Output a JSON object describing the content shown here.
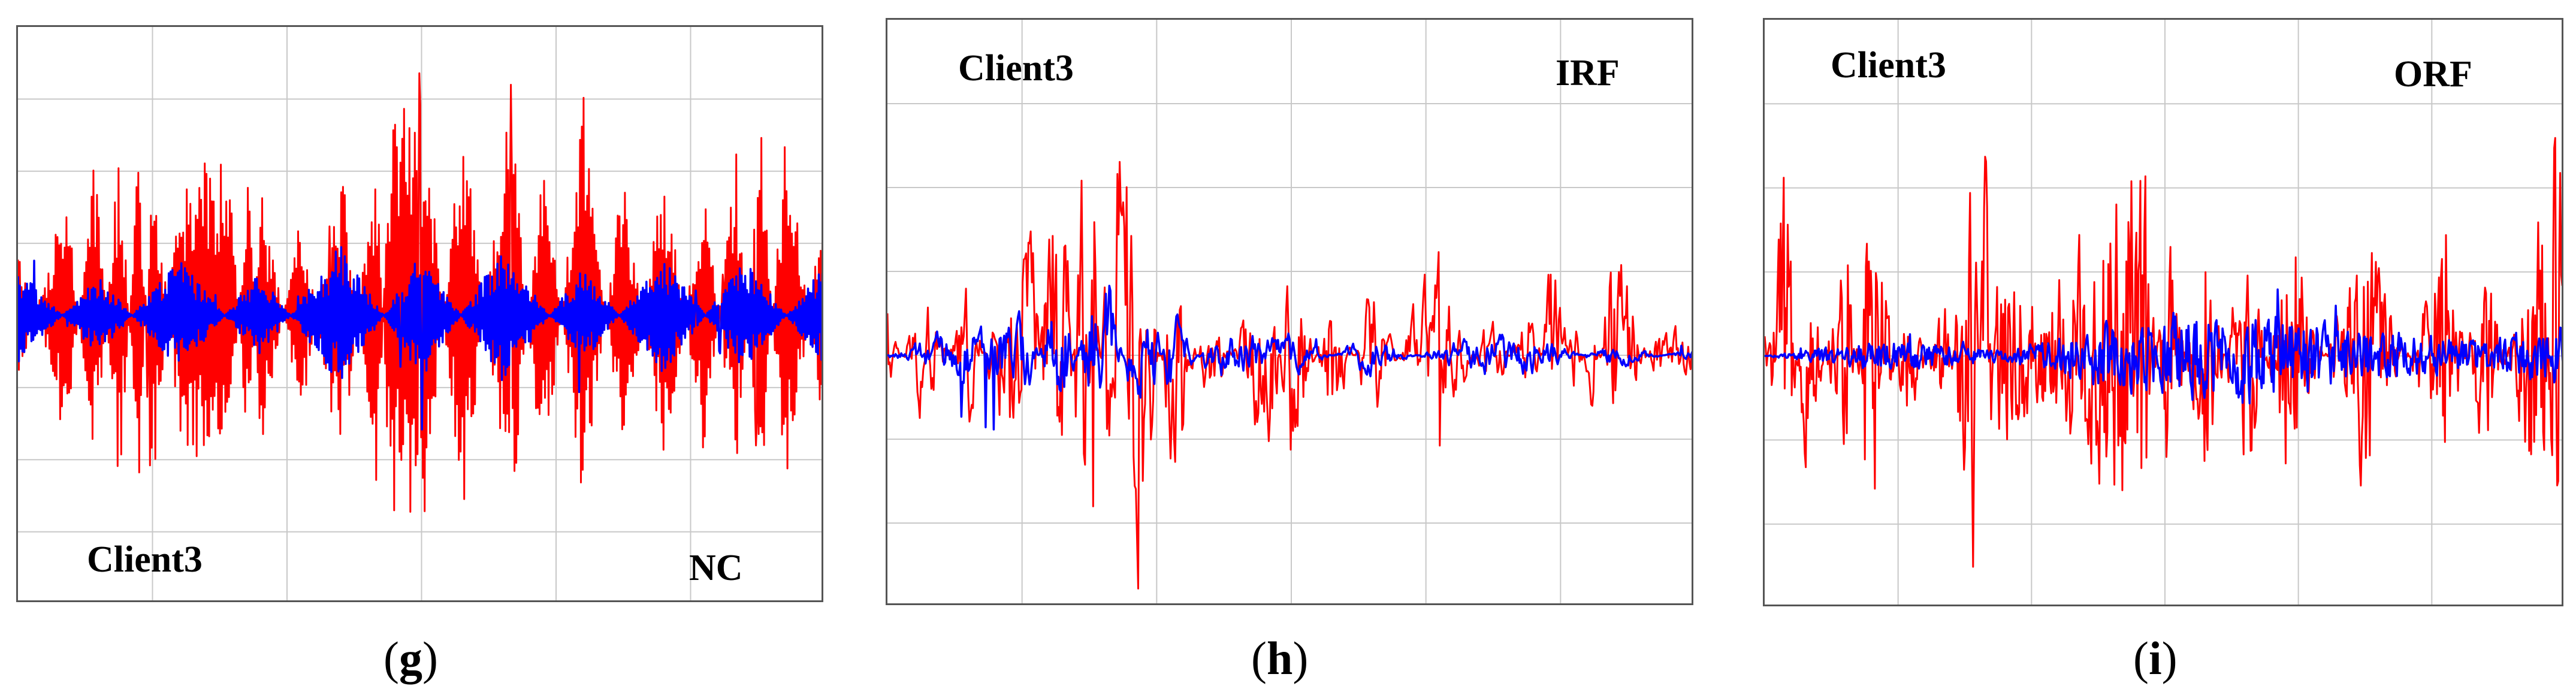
{
  "chart_data": [
    {
      "type": "line",
      "caption": "g",
      "client_label": "Client3",
      "fault_label": "NC",
      "grid": true,
      "colors": {
        "series_a": "#ff0000",
        "series_b": "#0000ff"
      },
      "ylim": [
        -4,
        4
      ],
      "style": "fast",
      "series": [
        {
          "color": "#ff0000",
          "amp": 0.95,
          "x": [
            0,
            12,
            19,
            25,
            30,
            33,
            40,
            52,
            57,
            60,
            70,
            80,
            89,
            92,
            100,
            110,
            122,
            130,
            140,
            150,
            160,
            170,
            178,
            184,
            190,
            200
          ],
          "y": [
            1.0,
            -1.8,
            2.3,
            -2.5,
            2.4,
            -2.8,
            1.8,
            2.6,
            -2.4,
            2.0,
            -1.5,
            2.3,
            -2.6,
            2.8,
            3.4,
            -3.0,
            3.3,
            -2.7,
            3.1,
            -2.2,
            2.3,
            -2.1,
            2.5,
            -2.8,
            2.9,
            -2.0
          ]
        },
        {
          "color": "#0000ff",
          "amp": 0.55,
          "x": [
            0,
            20,
            40,
            60,
            80,
            100,
            120,
            140,
            160,
            180,
            200
          ],
          "y": [
            1.2,
            -1.0,
            1.4,
            -1.1,
            1.8,
            -1.6,
            1.7,
            -1.2,
            1.5,
            -1.4,
            1.3
          ]
        }
      ]
    },
    {
      "type": "line",
      "caption": "h",
      "client_label": "Client3",
      "fault_label": "IRF",
      "grid": true,
      "colors": {
        "series_a": "#ff0000",
        "series_b": "#0000ff"
      },
      "ylim": [
        -3,
        4
      ],
      "style": "slow",
      "series": [
        {
          "color": "#ff0000",
          "amp": 0.8,
          "x": [
            0,
            10,
            20,
            30,
            36,
            40,
            44,
            48,
            50,
            54,
            58,
            62,
            66,
            70,
            80,
            95,
            100,
            110,
            120,
            135,
            150,
            160,
            165,
            170,
            175,
            180,
            190,
            200
          ],
          "y": [
            0.5,
            -1.0,
            1.0,
            -1.5,
            -2.0,
            2.6,
            2.5,
            -2.4,
            -2.8,
            1.5,
            2.4,
            3.0,
            1.0,
            -1.6,
            0.8,
            -1.5,
            1.8,
            -1.2,
            1.0,
            -1.3,
            0.6,
            -0.8,
            1.5,
            -0.6,
            0.7,
            -1.8,
            0.4,
            0.3
          ]
        },
        {
          "color": "#0000ff",
          "amp": 0.4,
          "x": [
            0,
            20,
            35,
            40,
            44,
            50,
            55,
            60,
            66,
            70,
            80,
            100,
            120,
            140,
            160,
            180,
            200
          ],
          "y": [
            0.0,
            -0.8,
            -1.0,
            1.0,
            1.5,
            -1.6,
            -1.8,
            0.8,
            1.2,
            -1.2,
            0.6,
            0.5,
            -0.5,
            0.4,
            0.5,
            -0.3,
            0.2
          ]
        }
      ]
    },
    {
      "type": "line",
      "caption": "i",
      "client_label": "Client3",
      "fault_label": "ORF",
      "grid": true,
      "colors": {
        "series_a": "#ff0000",
        "series_b": "#0000ff"
      },
      "ylim": [
        -3,
        4
      ],
      "style": "medium",
      "series": [
        {
          "color": "#ff0000",
          "amp": 0.9,
          "x": [
            0,
            5,
            10,
            20,
            27,
            35,
            45,
            52,
            55,
            58,
            70,
            90,
            95,
            100,
            110,
            120,
            130,
            150,
            170,
            180,
            190,
            194,
            197,
            200
          ],
          "y": [
            -0.5,
            2.5,
            -1.5,
            1.5,
            -2.3,
            1.0,
            -0.8,
            3.0,
            -2.9,
            1.2,
            0.8,
            2.4,
            2.8,
            -2.0,
            1.8,
            -1.8,
            1.6,
            -1.6,
            1.5,
            -1.4,
            1.2,
            2.9,
            -2.6,
            -3.0
          ]
        },
        {
          "color": "#0000ff",
          "amp": 0.6,
          "x": [
            0,
            30,
            60,
            90,
            120,
            150,
            180,
            200
          ],
          "y": [
            0.0,
            0.3,
            0.1,
            0.7,
            0.9,
            0.5,
            0.3,
            0.6
          ]
        }
      ]
    }
  ]
}
